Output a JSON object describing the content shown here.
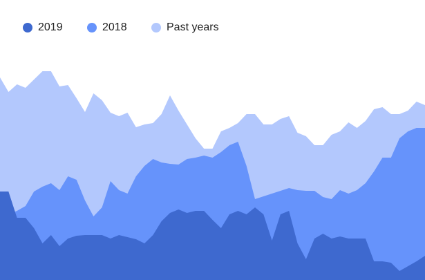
{
  "chart_data": {
    "type": "area",
    "categories": [
      null,
      null,
      null,
      null,
      null,
      null,
      null,
      null,
      null,
      null,
      null,
      null,
      null,
      null,
      null,
      null,
      null,
      null,
      null,
      null,
      null,
      null,
      null,
      null,
      null,
      null,
      null,
      null,
      null,
      null,
      null,
      null,
      null,
      null,
      null,
      null,
      null,
      null,
      null,
      null,
      null,
      null,
      null,
      null,
      null,
      null,
      null,
      null,
      null,
      null,
      null
    ],
    "ylim": [
      0,
      405
    ],
    "legend": "top-left",
    "series": [
      {
        "name": "Past years",
        "color": "#b3c8fd",
        "values": [
          293,
          272,
          283,
          278,
          290,
          302,
          302,
          280,
          282,
          263,
          243,
          270,
          260,
          242,
          237,
          242,
          221,
          225,
          227,
          240,
          267,
          245,
          225,
          205,
          190,
          190,
          215,
          220,
          227,
          240,
          240,
          225,
          225,
          233,
          237,
          213,
          208,
          195,
          195,
          210,
          215,
          228,
          220,
          230,
          247,
          250,
          240,
          240,
          245,
          258,
          253
        ]
      },
      {
        "name": "2018",
        "color": "#6693fb",
        "values": [
          118,
          95,
          100,
          107,
          128,
          135,
          140,
          130,
          150,
          145,
          115,
          92,
          105,
          143,
          130,
          125,
          150,
          165,
          175,
          170,
          168,
          167,
          175,
          177,
          180,
          177,
          185,
          195,
          200,
          165,
          117,
          121,
          125,
          129,
          133,
          130,
          129,
          129,
          120,
          117,
          130,
          125,
          130,
          140,
          157,
          177,
          177,
          205,
          215,
          220,
          220
        ]
      },
      {
        "name": "2019",
        "color": "#3e69cf",
        "values": [
          128,
          128,
          90,
          90,
          75,
          53,
          65,
          49,
          60,
          64,
          65,
          65,
          65,
          60,
          65,
          62,
          59,
          53,
          65,
          85,
          97,
          102,
          97,
          100,
          100,
          87,
          75,
          95,
          100,
          95,
          105,
          95,
          57,
          95,
          100,
          53,
          30,
          60,
          67,
          60,
          63,
          60,
          60,
          60,
          27,
          27,
          25,
          13,
          20,
          27,
          35
        ]
      }
    ]
  }
}
